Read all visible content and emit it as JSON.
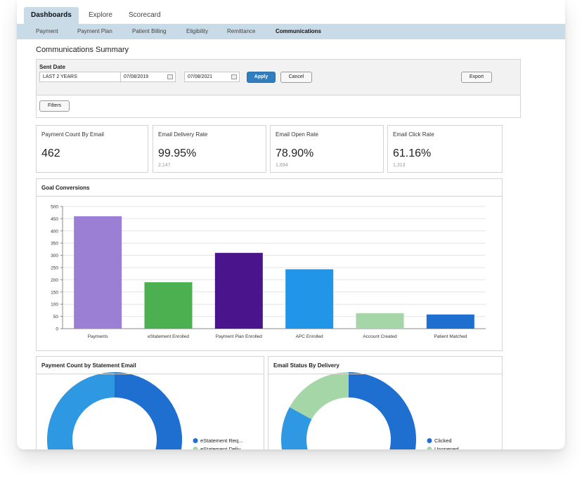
{
  "nav": {
    "tabs": [
      "Dashboards",
      "Explore",
      "Scorecard"
    ],
    "subnav": [
      "Payment",
      "Payment Plan",
      "Patient Billing",
      "Eligibility",
      "Remittance",
      "Communications"
    ]
  },
  "page": {
    "title": "Communications Summary"
  },
  "filters": {
    "sent_date_label": "Sent Date",
    "range_value": "LAST 2 YEARS",
    "date_from": "07/08/2019",
    "date_separator": "-",
    "date_to": "07/08/2021",
    "apply_label": "Apply",
    "cancel_label": "Cancel",
    "export_label": "Export",
    "filters_label": "Filters"
  },
  "kpis": [
    {
      "title": "Payment Count By Email",
      "value": "462",
      "sub": ""
    },
    {
      "title": "Email Delivery Rate",
      "value": "99.95%",
      "sub": "2,147"
    },
    {
      "title": "Email Open Rate",
      "value": "78.90%",
      "sub": "1,694"
    },
    {
      "title": "Email Click Rate",
      "value": "61.16%",
      "sub": "1,313"
    }
  ],
  "goal_panel": {
    "title": "Goal Conversions"
  },
  "chart_data": {
    "type": "bar",
    "categories": [
      "Payments",
      "eStatement Enrolled",
      "Payment Plan Enrolled",
      "APC Enrolled",
      "Account Created",
      "Patient Matched"
    ],
    "values": [
      460,
      190,
      310,
      243,
      63,
      58
    ],
    "colors": [
      "#9b7fd4",
      "#4caf50",
      "#4a148c",
      "#2196e8",
      "#a5d6a7",
      "#1f6fd1"
    ],
    "ylim": [
      0,
      500
    ],
    "yticks": [
      0,
      50,
      100,
      150,
      200,
      250,
      300,
      350,
      400,
      450,
      500
    ],
    "grid": true
  },
  "donut_panels": [
    {
      "title": "Payment Count by Statement Email",
      "legend": [
        "eStatement Req...",
        "eStatement Deliv..."
      ],
      "colors": [
        "#1f6fd1",
        "#2f98e3",
        "#a5d6a7"
      ],
      "values": [
        47,
        53,
        0
      ]
    },
    {
      "title": "Email Status By Delivery",
      "legend": [
        "Clicked",
        "Unopened"
      ],
      "colors": [
        "#1f6fd1",
        "#2f98e3",
        "#a5d6a7"
      ],
      "values": [
        61,
        22,
        17
      ]
    }
  ]
}
